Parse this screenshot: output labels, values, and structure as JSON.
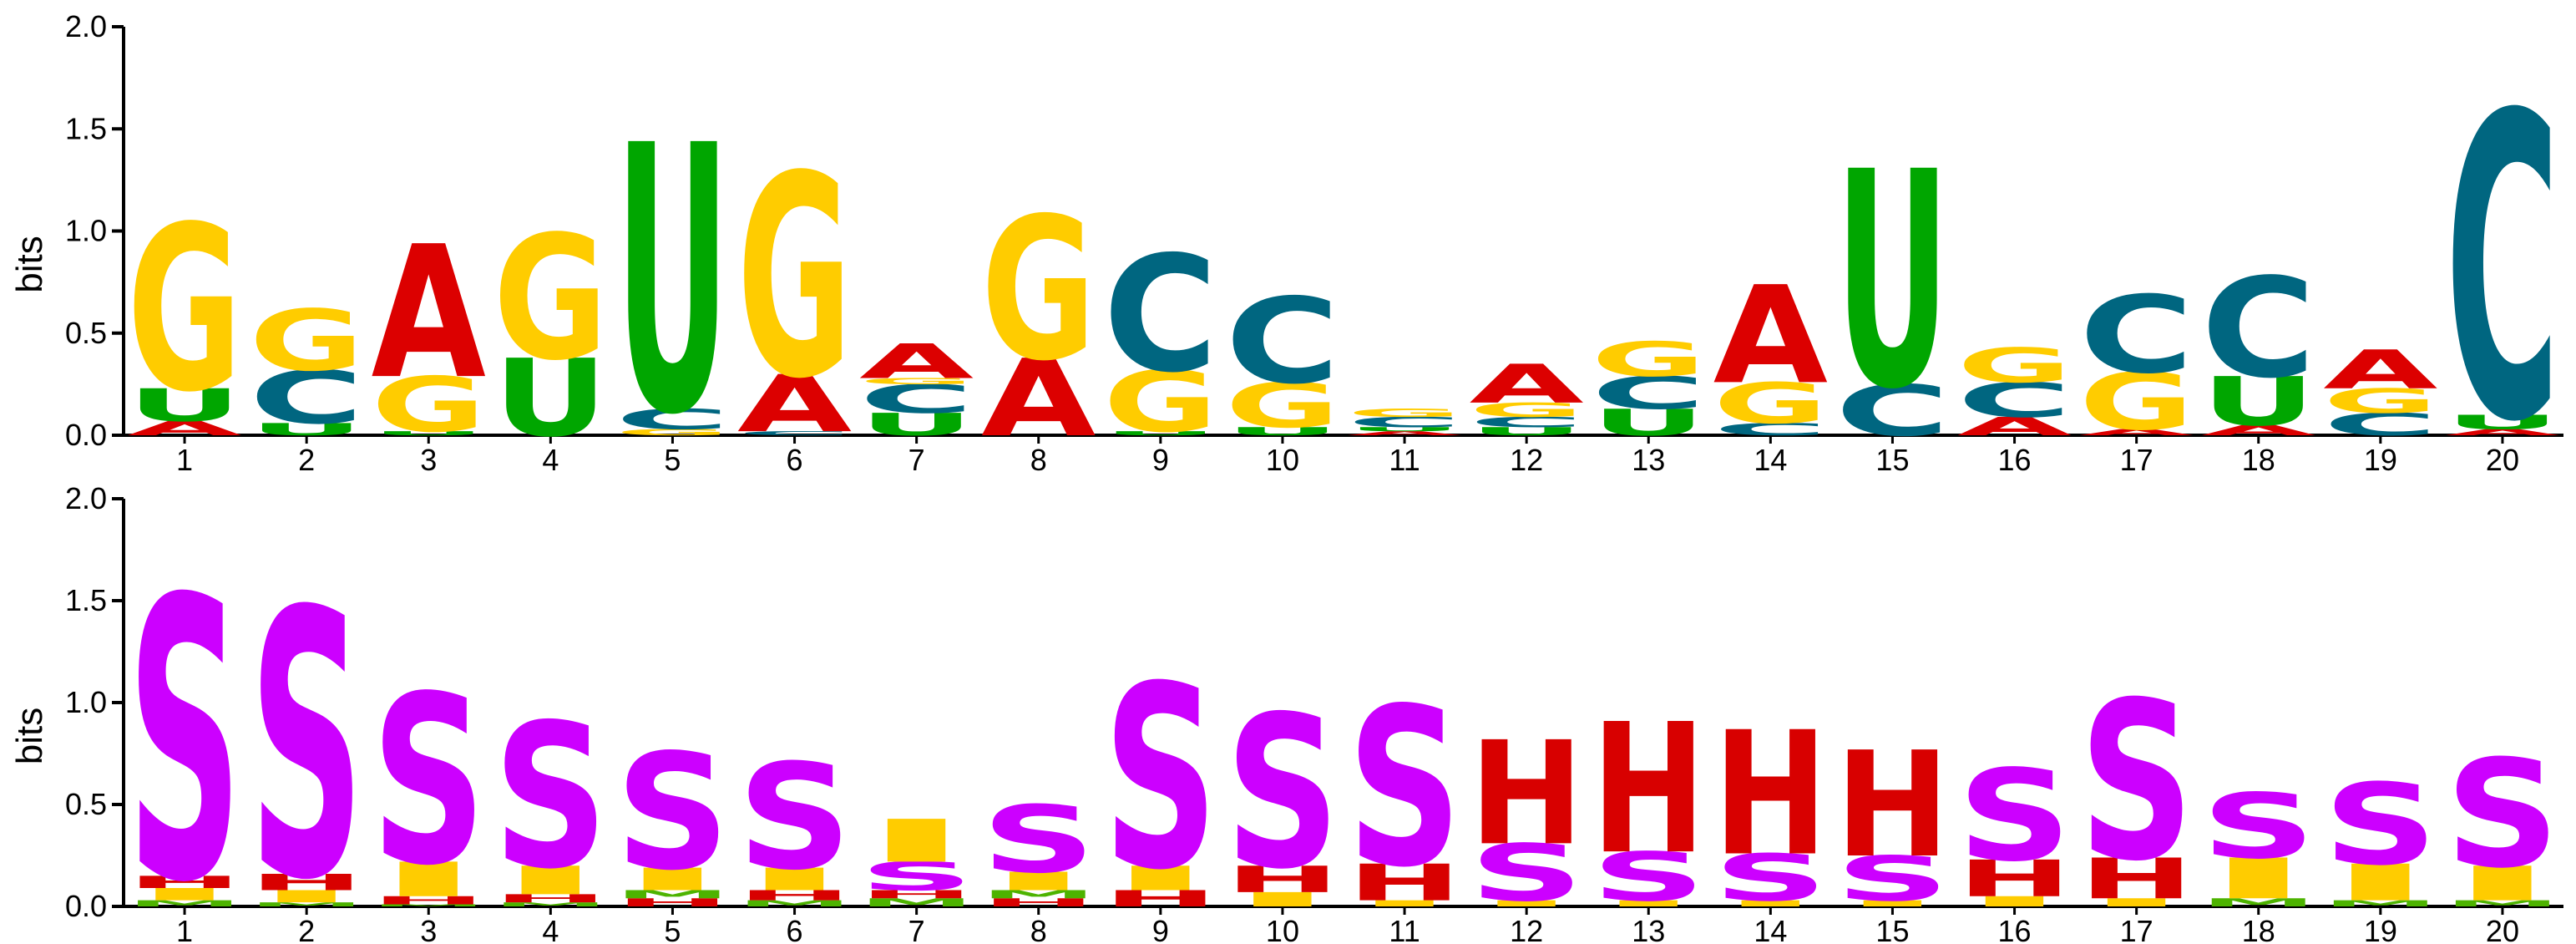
{
  "colors": {
    "A": "#dc0000",
    "C": "#006680",
    "G": "#ffcc00",
    "U": "#00a600",
    "S": "#cc00ff",
    "H": "#d80000",
    "I": "#ffcc00",
    "M": "#4db300"
  },
  "chart_data": [
    {
      "type": "sequence-logo",
      "ylabel": "bits",
      "ylim": [
        0,
        2
      ],
      "yticks": [
        "0.0",
        "0.5",
        "1.0",
        "1.5",
        "2.0"
      ],
      "positions": [
        "1",
        "2",
        "3",
        "4",
        "5",
        "6",
        "7",
        "8",
        "9",
        "10",
        "11",
        "12",
        "13",
        "14",
        "15",
        "16",
        "17",
        "18",
        "19",
        "20"
      ],
      "columns": [
        [
          [
            "A",
            0.07
          ],
          [
            "U",
            0.16
          ],
          [
            "G",
            0.81
          ]
        ],
        [
          [
            "U",
            0.06
          ],
          [
            "C",
            0.26
          ],
          [
            "G",
            0.3
          ]
        ],
        [
          [
            "U",
            0.02
          ],
          [
            "G",
            0.27
          ],
          [
            "A",
            0.65
          ]
        ],
        [
          [
            "U",
            0.38
          ],
          [
            "G",
            0.61
          ]
        ],
        [
          [
            "G",
            0.03
          ],
          [
            "C",
            0.1
          ],
          [
            "U",
            1.31
          ]
        ],
        [
          [
            "C",
            0.02
          ],
          [
            "A",
            0.28
          ],
          [
            "G",
            0.99
          ]
        ],
        [
          [
            "U",
            0.11
          ],
          [
            "C",
            0.14
          ],
          [
            "G",
            0.03
          ],
          [
            "A",
            0.17
          ]
        ],
        [
          [
            "A",
            0.38
          ],
          [
            "G",
            0.7
          ]
        ],
        [
          [
            "U",
            0.02
          ],
          [
            "G",
            0.3
          ],
          [
            "C",
            0.57
          ]
        ],
        [
          [
            "U",
            0.04
          ],
          [
            "G",
            0.22
          ],
          [
            "C",
            0.42
          ]
        ],
        [
          [
            "A",
            0.02
          ],
          [
            "U",
            0.02
          ],
          [
            "C",
            0.05
          ],
          [
            "G",
            0.04
          ]
        ],
        [
          [
            "U",
            0.04
          ],
          [
            "C",
            0.05
          ],
          [
            "G",
            0.07
          ],
          [
            "A",
            0.19
          ]
        ],
        [
          [
            "U",
            0.13
          ],
          [
            "C",
            0.16
          ],
          [
            "G",
            0.17
          ]
        ],
        [
          [
            "C",
            0.06
          ],
          [
            "G",
            0.2
          ],
          [
            "A",
            0.48
          ]
        ],
        [
          [
            "C",
            0.25
          ],
          [
            "U",
            1.06
          ]
        ],
        [
          [
            "A",
            0.09
          ],
          [
            "C",
            0.17
          ],
          [
            "G",
            0.17
          ]
        ],
        [
          [
            "A",
            0.03
          ],
          [
            "G",
            0.28
          ],
          [
            "C",
            0.38
          ]
        ],
        [
          [
            "A",
            0.05
          ],
          [
            "U",
            0.24
          ],
          [
            "C",
            0.49
          ]
        ],
        [
          [
            "C",
            0.11
          ],
          [
            "G",
            0.12
          ],
          [
            "A",
            0.19
          ]
        ],
        [
          [
            "A",
            0.03
          ],
          [
            "U",
            0.07
          ],
          [
            "C",
            1.49
          ]
        ]
      ]
    },
    {
      "type": "sequence-logo",
      "ylabel": "bits",
      "ylim": [
        0,
        2
      ],
      "yticks": [
        "0.0",
        "0.5",
        "1.0",
        "1.5",
        "2.0"
      ],
      "positions": [
        "1",
        "2",
        "3",
        "4",
        "5",
        "6",
        "7",
        "8",
        "9",
        "10",
        "11",
        "12",
        "13",
        "14",
        "15",
        "16",
        "17",
        "18",
        "19",
        "20"
      ],
      "columns": [
        [
          [
            "M",
            0.03
          ],
          [
            "I",
            0.06
          ],
          [
            "H",
            0.06
          ],
          [
            "S",
            1.38
          ]
        ],
        [
          [
            "M",
            0.02
          ],
          [
            "I",
            0.06
          ],
          [
            "H",
            0.08
          ],
          [
            "S",
            1.31
          ]
        ],
        [
          [
            "M",
            0.01
          ],
          [
            "H",
            0.04
          ],
          [
            "I",
            0.17
          ],
          [
            "S",
            0.83
          ]
        ],
        [
          [
            "M",
            0.02
          ],
          [
            "H",
            0.04
          ],
          [
            "I",
            0.14
          ],
          [
            "S",
            0.71
          ]
        ],
        [
          [
            "H",
            0.04
          ],
          [
            "M",
            0.04
          ],
          [
            "I",
            0.11
          ],
          [
            "S",
            0.57
          ]
        ],
        [
          [
            "M",
            0.03
          ],
          [
            "H",
            0.05
          ],
          [
            "I",
            0.11
          ],
          [
            "S",
            0.52
          ]
        ],
        [
          [
            "M",
            0.04
          ],
          [
            "H",
            0.04
          ],
          [
            "S",
            0.14
          ],
          [
            "I",
            0.21
          ]
        ],
        [
          [
            "H",
            0.04
          ],
          [
            "M",
            0.04
          ],
          [
            "I",
            0.09
          ],
          [
            "S",
            0.33
          ]
        ],
        [
          [
            "H",
            0.08
          ],
          [
            "I",
            0.12
          ],
          [
            "S",
            0.9
          ]
        ],
        [
          [
            "I",
            0.07
          ],
          [
            "H",
            0.13
          ],
          [
            "S",
            0.75
          ]
        ],
        [
          [
            "I",
            0.03
          ],
          [
            "H",
            0.18
          ],
          [
            "S",
            0.78
          ]
        ],
        [
          [
            "I",
            0.03
          ],
          [
            "S",
            0.28
          ],
          [
            "H",
            0.51
          ]
        ],
        [
          [
            "I",
            0.03
          ],
          [
            "S",
            0.24
          ],
          [
            "H",
            0.64
          ]
        ],
        [
          [
            "I",
            0.03
          ],
          [
            "S",
            0.23
          ],
          [
            "H",
            0.61
          ]
        ],
        [
          [
            "I",
            0.03
          ],
          [
            "S",
            0.22
          ],
          [
            "H",
            0.52
          ]
        ],
        [
          [
            "I",
            0.05
          ],
          [
            "H",
            0.18
          ],
          [
            "S",
            0.45
          ]
        ],
        [
          [
            "I",
            0.04
          ],
          [
            "H",
            0.2
          ],
          [
            "S",
            0.78
          ]
        ],
        [
          [
            "M",
            0.04
          ],
          [
            "I",
            0.2
          ],
          [
            "S",
            0.32
          ]
        ],
        [
          [
            "M",
            0.03
          ],
          [
            "I",
            0.18
          ],
          [
            "S",
            0.4
          ]
        ],
        [
          [
            "M",
            0.03
          ],
          [
            "I",
            0.17
          ],
          [
            "S",
            0.53
          ]
        ]
      ]
    }
  ]
}
